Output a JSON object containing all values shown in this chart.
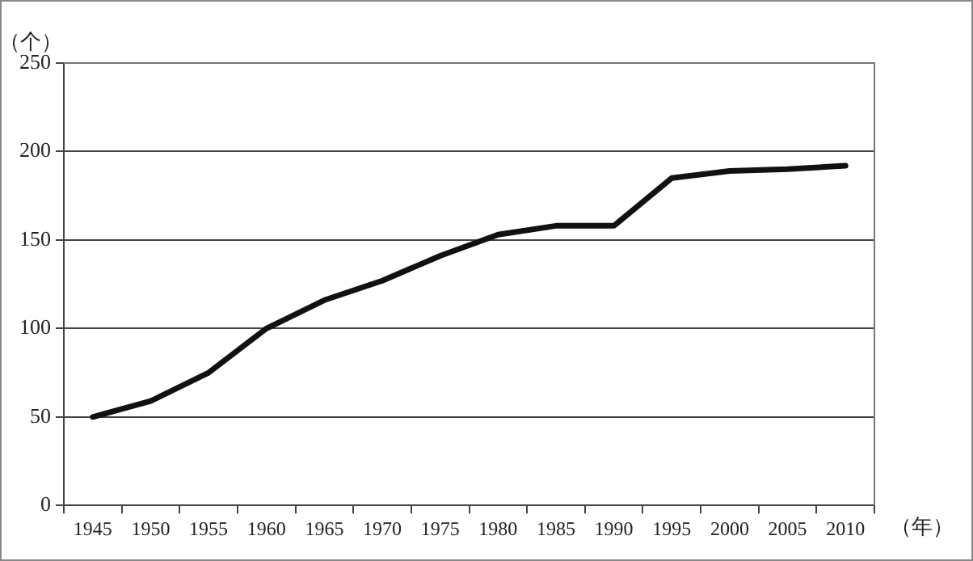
{
  "chart_data": {
    "type": "line",
    "ylabel": "（个）",
    "xlabel": "（年）",
    "categories": [
      "1945",
      "1950",
      "1955",
      "1960",
      "1965",
      "1970",
      "1975",
      "1980",
      "1985",
      "1990",
      "1995",
      "2000",
      "2005",
      "2010"
    ],
    "series": [
      {
        "color": "#111111",
        "values": [
          50,
          59,
          75,
          100,
          116,
          127,
          141,
          153,
          158,
          158,
          185,
          189,
          190,
          192
        ]
      }
    ],
    "ylim": [
      0,
      250
    ],
    "yticks": [
      0,
      50,
      100,
      150,
      200,
      250
    ],
    "grid": "y",
    "legend": false,
    "marker": "none",
    "line_style": "solid"
  }
}
